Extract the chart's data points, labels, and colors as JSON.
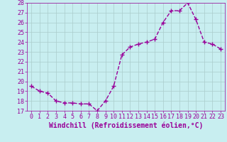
{
  "x": [
    0,
    1,
    2,
    3,
    4,
    5,
    6,
    7,
    8,
    9,
    10,
    11,
    12,
    13,
    14,
    15,
    16,
    17,
    18,
    19,
    20,
    21,
    22,
    23
  ],
  "y": [
    19.5,
    19.0,
    18.8,
    18.0,
    17.8,
    17.8,
    17.7,
    17.7,
    17.0,
    18.0,
    19.5,
    22.7,
    23.5,
    23.8,
    24.0,
    24.3,
    26.0,
    27.2,
    27.2,
    28.0,
    26.3,
    24.0,
    23.8,
    23.3
  ],
  "xlabel": "Windchill (Refroidissement éolien,°C)",
  "ylim": [
    17,
    28
  ],
  "xlim": [
    -0.5,
    23.5
  ],
  "yticks": [
    17,
    18,
    19,
    20,
    21,
    22,
    23,
    24,
    25,
    26,
    27,
    28
  ],
  "xticks": [
    0,
    1,
    2,
    3,
    4,
    5,
    6,
    7,
    8,
    9,
    10,
    11,
    12,
    13,
    14,
    15,
    16,
    17,
    18,
    19,
    20,
    21,
    22,
    23
  ],
  "line_color": "#990099",
  "marker": "+",
  "marker_size": 4,
  "bg_color": "#c8eef0",
  "grid_color": "#aacccc",
  "xlabel_fontsize": 7,
  "tick_fontsize": 6,
  "line_width": 1.0,
  "line_style": "--"
}
